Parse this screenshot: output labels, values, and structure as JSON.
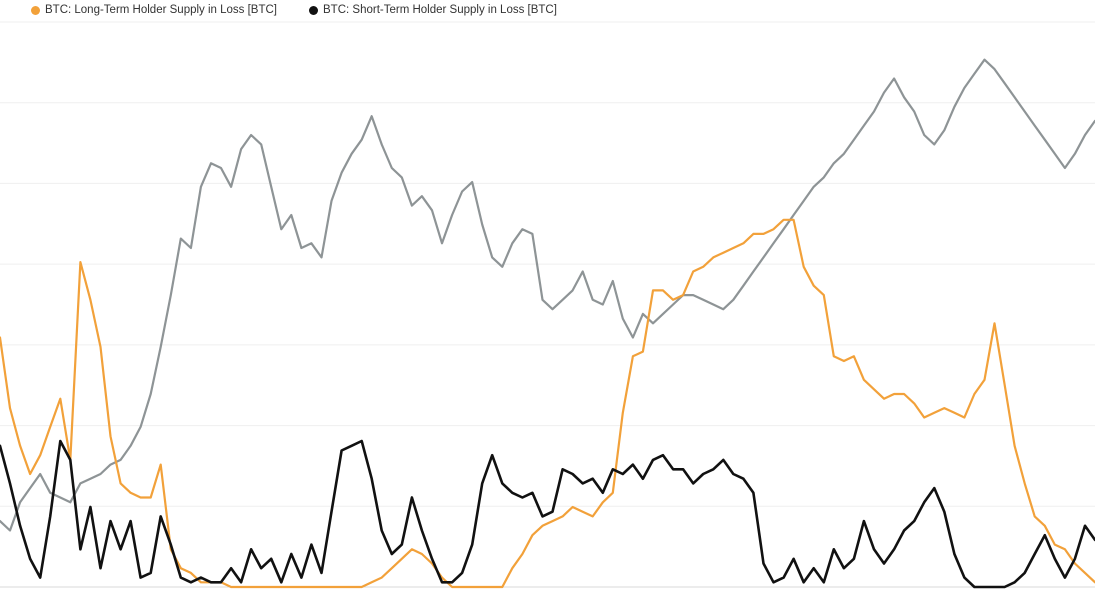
{
  "chart_data": {
    "type": "line",
    "title": "",
    "xlabel": "",
    "ylabel": "",
    "grid": true,
    "legend_position": "top-left",
    "x": [
      0,
      1,
      2,
      3,
      4,
      5,
      6,
      7,
      8,
      9,
      10,
      11,
      12,
      13,
      14,
      15,
      16,
      17,
      18,
      19,
      20,
      21,
      22,
      23,
      24,
      25,
      26,
      27,
      28,
      29,
      30,
      31,
      32,
      33,
      34,
      35,
      36,
      37,
      38,
      39,
      40,
      41,
      42,
      43,
      44,
      45,
      46,
      47,
      48,
      49,
      50,
      51,
      52,
      53,
      54,
      55,
      56,
      57,
      58,
      59,
      60,
      61,
      62,
      63,
      64,
      65,
      66,
      67,
      68,
      69,
      70,
      71,
      72,
      73,
      74,
      75,
      76,
      77,
      78,
      79,
      80,
      81,
      82,
      83,
      84,
      85,
      86,
      87,
      88,
      89,
      90,
      91,
      92,
      93,
      94,
      95,
      96,
      97,
      98,
      99,
      100,
      101,
      102,
      103,
      104,
      105,
      106,
      107,
      108,
      109
    ],
    "series": [
      {
        "name": "BTC: Long-Term Holder Supply in Loss [BTC]",
        "color": "#f2a13a",
        "values": [
          5.3,
          3.8,
          3.0,
          2.4,
          2.8,
          3.4,
          4.0,
          2.7,
          6.9,
          6.1,
          5.1,
          3.2,
          2.2,
          2.0,
          1.9,
          1.9,
          2.6,
          0.8,
          0.4,
          0.3,
          0.1,
          0.1,
          0.1,
          0.0,
          0.0,
          0.0,
          0.0,
          0.0,
          0.0,
          0.0,
          0.0,
          0.0,
          0.0,
          0.0,
          0.0,
          0.0,
          0.0,
          0.1,
          0.2,
          0.4,
          0.6,
          0.8,
          0.7,
          0.5,
          0.2,
          0.0,
          0.0,
          0.0,
          0.0,
          0.0,
          0.0,
          0.4,
          0.7,
          1.1,
          1.3,
          1.4,
          1.5,
          1.7,
          1.6,
          1.5,
          1.8,
          2.0,
          3.7,
          4.9,
          5.0,
          6.3,
          6.3,
          6.1,
          6.2,
          6.7,
          6.8,
          7.0,
          7.1,
          7.2,
          7.3,
          7.5,
          7.5,
          7.6,
          7.8,
          7.8,
          6.8,
          6.4,
          6.2,
          4.9,
          4.8,
          4.9,
          4.4,
          4.2,
          4.0,
          4.1,
          4.1,
          3.9,
          3.6,
          3.7,
          3.8,
          3.7,
          3.6,
          4.1,
          4.4,
          5.6,
          4.3,
          3.0,
          2.2,
          1.5,
          1.3,
          0.9,
          0.8,
          0.5,
          0.3,
          0.1
        ]
      },
      {
        "name": "BTC: Short-Term Holder Supply in Loss [BTC]",
        "color": "#111111",
        "values": [
          3.0,
          2.2,
          1.3,
          0.6,
          0.2,
          1.5,
          3.1,
          2.7,
          0.8,
          1.7,
          0.4,
          1.4,
          0.8,
          1.4,
          0.2,
          0.3,
          1.5,
          0.9,
          0.2,
          0.1,
          0.2,
          0.1,
          0.1,
          0.4,
          0.1,
          0.8,
          0.4,
          0.6,
          0.1,
          0.7,
          0.2,
          0.9,
          0.3,
          1.6,
          2.9,
          3.0,
          3.1,
          2.3,
          1.2,
          0.7,
          0.9,
          1.9,
          1.2,
          0.6,
          0.1,
          0.1,
          0.3,
          0.9,
          2.2,
          2.8,
          2.2,
          2.0,
          1.9,
          2.0,
          1.5,
          1.6,
          2.5,
          2.4,
          2.2,
          2.3,
          2.0,
          2.5,
          2.4,
          2.6,
          2.3,
          2.7,
          2.8,
          2.5,
          2.5,
          2.2,
          2.4,
          2.5,
          2.7,
          2.4,
          2.3,
          2.0,
          0.5,
          0.1,
          0.2,
          0.6,
          0.1,
          0.4,
          0.1,
          0.8,
          0.4,
          0.6,
          1.4,
          0.8,
          0.5,
          0.8,
          1.2,
          1.4,
          1.8,
          2.1,
          1.6,
          0.7,
          0.2,
          0.0,
          0.0,
          0.0,
          0.0,
          0.1,
          0.3,
          0.7,
          1.1,
          0.6,
          0.2,
          0.6,
          1.3,
          1.0
        ]
      },
      {
        "color": "#8e9496",
        "values": [
          1.4,
          1.2,
          1.8,
          2.1,
          2.4,
          2.0,
          1.9,
          1.8,
          2.2,
          2.3,
          2.4,
          2.6,
          2.7,
          3.0,
          3.4,
          4.1,
          5.1,
          6.2,
          7.4,
          7.2,
          8.5,
          9.0,
          8.9,
          8.5,
          9.3,
          9.6,
          9.4,
          8.5,
          7.6,
          7.9,
          7.2,
          7.3,
          7.0,
          8.2,
          8.8,
          9.2,
          9.5,
          10.0,
          9.4,
          8.9,
          8.7,
          8.1,
          8.3,
          8.0,
          7.3,
          7.9,
          8.4,
          8.6,
          7.7,
          7.0,
          6.8,
          7.3,
          7.6,
          7.5,
          6.1,
          5.9,
          6.1,
          6.3,
          6.7,
          6.1,
          6.0,
          6.5,
          5.7,
          5.3,
          5.8,
          5.6,
          5.8,
          6.0,
          6.2,
          6.2,
          6.1,
          6.0,
          5.9,
          6.1,
          6.4,
          6.7,
          7.0,
          7.3,
          7.6,
          7.9,
          8.2,
          8.5,
          8.7,
          9.0,
          9.2,
          9.5,
          9.8,
          10.1,
          10.5,
          10.8,
          10.4,
          10.1,
          9.6,
          9.4,
          9.7,
          10.2,
          10.6,
          10.9,
          11.2,
          11.0,
          10.7,
          10.4,
          10.1,
          9.8,
          9.5,
          9.2,
          8.9,
          9.2,
          9.6,
          9.9
        ]
      }
    ],
    "ylim": [
      0,
      12
    ]
  }
}
